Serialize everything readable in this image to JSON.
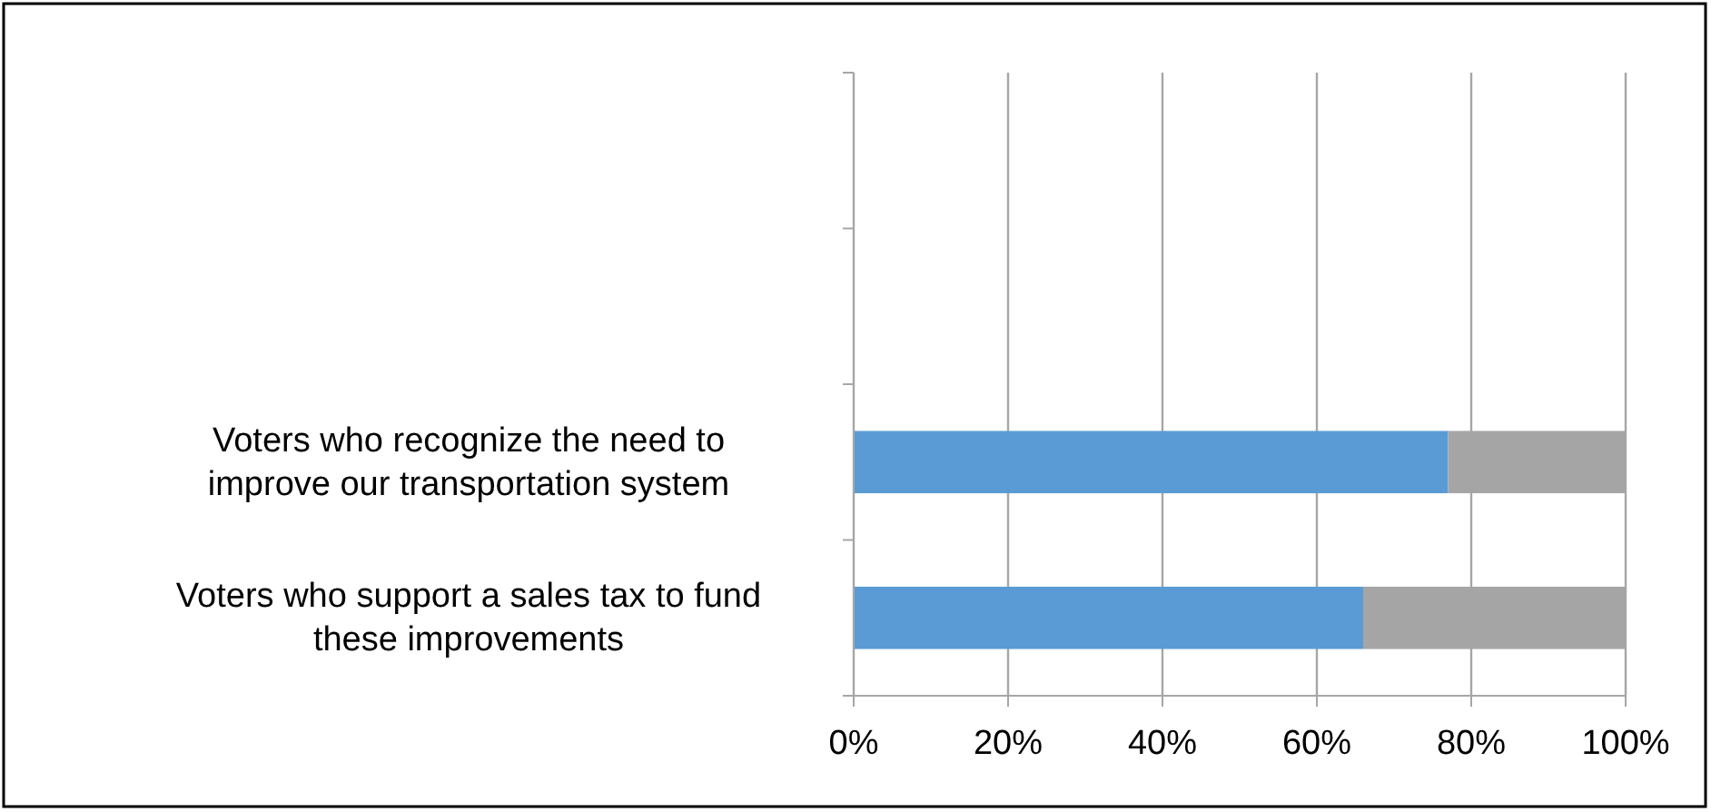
{
  "chart_data": {
    "type": "bar",
    "orientation": "horizontal",
    "stacked": true,
    "categories": [
      null,
      null,
      "Voters who recognize the need to improve our transportation system",
      "Voters who support a sales tax to fund these improvements"
    ],
    "series": [
      {
        "color": "#5b9bd5",
        "values": [
          null,
          null,
          77,
          66
        ]
      },
      {
        "color": "#a5a5a5",
        "values": [
          null,
          null,
          23,
          34
        ]
      }
    ],
    "xlim": [
      0,
      100
    ],
    "xticks": [
      {
        "value": 0,
        "label": "0%"
      },
      {
        "value": 20,
        "label": "20%"
      },
      {
        "value": 40,
        "label": "40%"
      },
      {
        "value": 60,
        "label": "60%"
      },
      {
        "value": 80,
        "label": "80%"
      },
      {
        "value": 100,
        "label": "100%"
      }
    ],
    "grid": "x"
  }
}
